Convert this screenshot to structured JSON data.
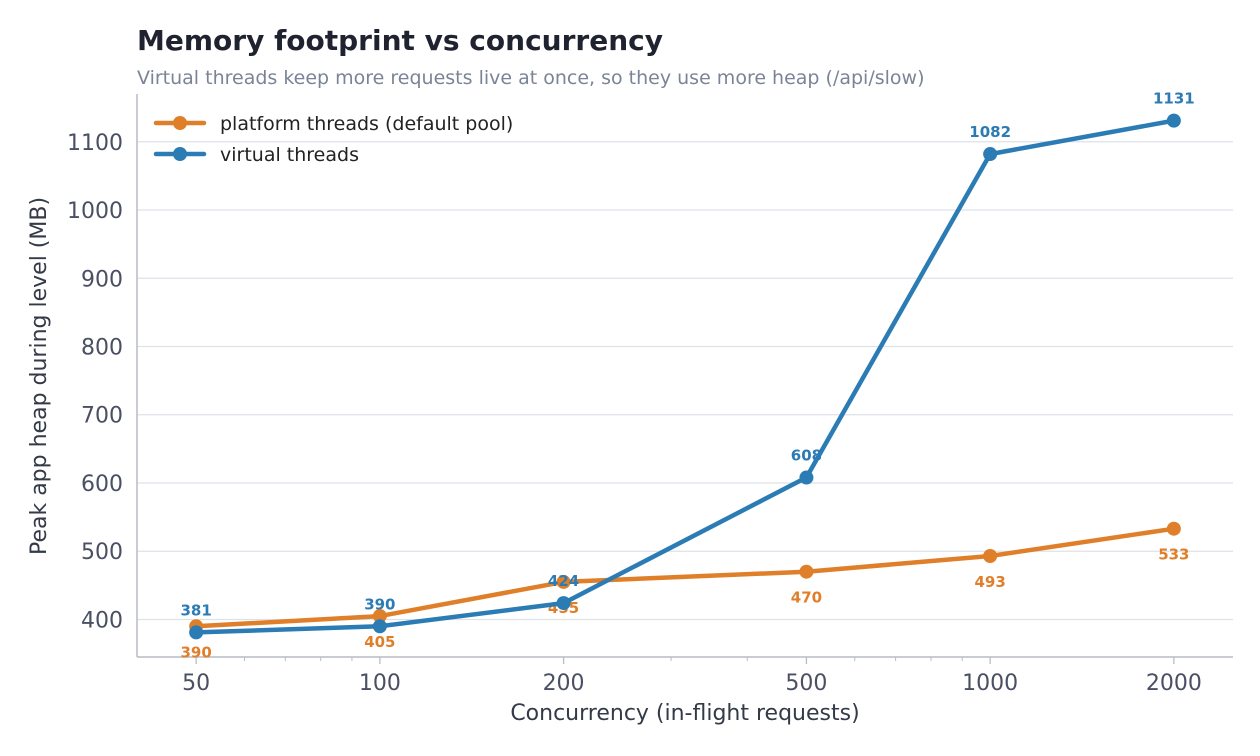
{
  "chart_data": {
    "type": "line",
    "title": "Memory footprint vs concurrency",
    "subtitle": "Virtual threads keep more requests live at once, so they use more heap (/api/slow)",
    "xlabel": "Concurrency (in-flight requests)",
    "ylabel": "Peak app heap during level (MB)",
    "x_scale": "log",
    "x": [
      50,
      100,
      200,
      500,
      1000,
      2000
    ],
    "x_tick_labels": [
      "50",
      "100",
      "200",
      "500",
      "1000",
      "2000"
    ],
    "y_ticks": [
      400,
      500,
      600,
      700,
      800,
      900,
      1000,
      1100
    ],
    "ylim": [
      345,
      1170
    ],
    "grid": "horizontal",
    "legend_position": "top-left",
    "series": [
      {
        "name": "platform threads (default pool)",
        "color": "#e07f2a",
        "values": [
          390,
          405,
          455,
          470,
          493,
          533
        ],
        "labels": [
          "390",
          "405",
          "455",
          "470",
          "493",
          "533"
        ],
        "label_position": "below"
      },
      {
        "name": "virtual threads",
        "color": "#2b7bb5",
        "values": [
          381,
          390,
          424,
          608,
          1082,
          1131
        ],
        "labels": [
          "381",
          "390",
          "424",
          "608",
          "1082",
          "1131"
        ],
        "label_position": "above"
      }
    ]
  }
}
